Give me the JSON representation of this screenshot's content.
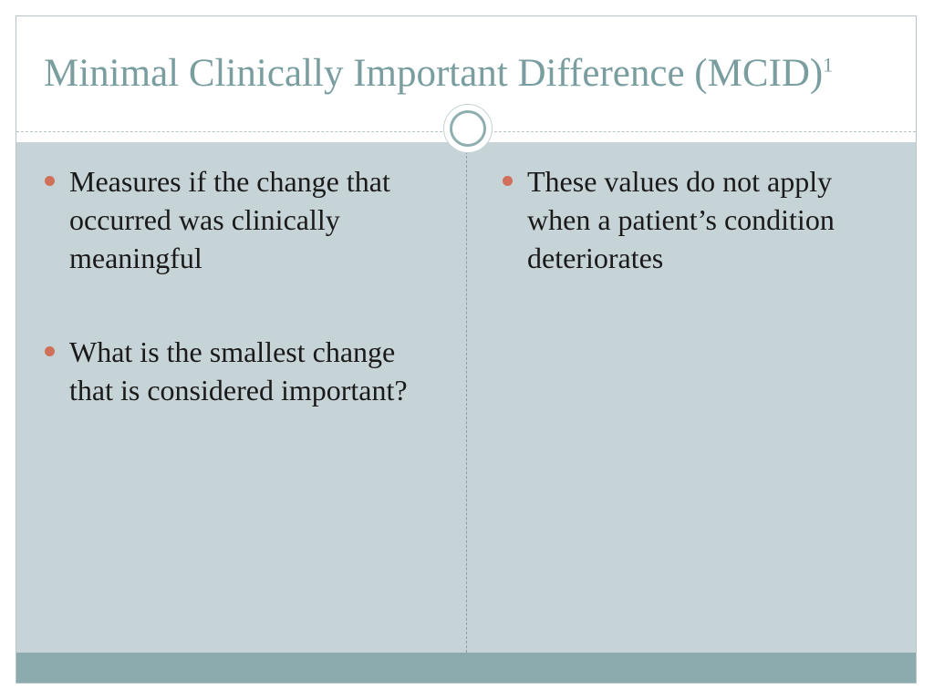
{
  "slide": {
    "title": "Minimal Clinically Important Difference (MCID)",
    "title_superscript": "1",
    "left_column": {
      "bullets": [
        "Measures if the change that occurred was clinically meaningful",
        "What is the smallest change that is considered important?"
      ]
    },
    "right_column": {
      "bullets": [
        "These values do not apply when a patient’s condition deteriorates"
      ]
    }
  },
  "colors": {
    "title": "#7a9ea0",
    "content_background": "#c6d3d7",
    "bullet_marker": "#d0705a",
    "bottom_bar": "#8babaf"
  }
}
